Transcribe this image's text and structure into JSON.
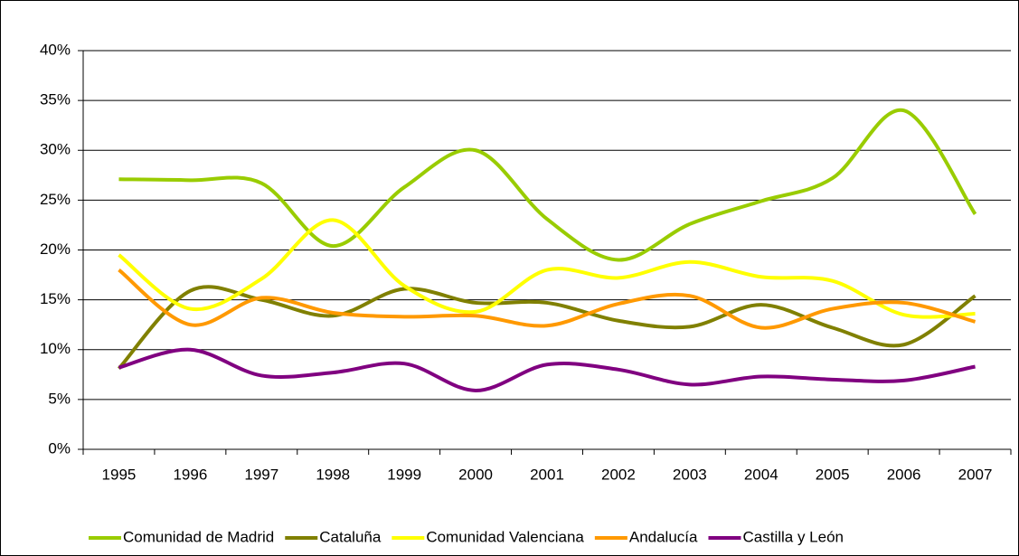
{
  "chart_data": {
    "type": "line",
    "categories": [
      "1995",
      "1996",
      "1997",
      "1998",
      "1999",
      "2000",
      "2001",
      "2002",
      "2003",
      "2004",
      "2005",
      "2006",
      "2007"
    ],
    "series": [
      {
        "name": "Comunidad de Madrid",
        "color": "#99cc00",
        "values": [
          27.1,
          27.0,
          26.7,
          20.4,
          26.3,
          30.0,
          23.1,
          19.0,
          22.6,
          24.9,
          27.2,
          34.0,
          23.6
        ]
      },
      {
        "name": "Cataluña",
        "color": "#808000",
        "values": [
          8.1,
          15.9,
          15.0,
          13.4,
          16.1,
          14.7,
          14.7,
          12.9,
          12.3,
          14.5,
          12.2,
          10.5,
          15.4
        ]
      },
      {
        "name": "Comunidad Valenciana",
        "color": "#ffff00",
        "values": [
          19.5,
          14.1,
          17.1,
          23.0,
          16.4,
          13.8,
          18.0,
          17.2,
          18.8,
          17.3,
          16.9,
          13.5,
          13.6
        ]
      },
      {
        "name": "Andalucía",
        "color": "#ff9900",
        "values": [
          18.0,
          12.5,
          15.2,
          13.7,
          13.3,
          13.4,
          12.4,
          14.6,
          15.4,
          12.2,
          14.1,
          14.7,
          12.8
        ]
      },
      {
        "name": "Castilla y León",
        "color": "#800080",
        "values": [
          8.2,
          10.0,
          7.4,
          7.7,
          8.6,
          5.9,
          8.5,
          8.0,
          6.5,
          7.3,
          7.0,
          6.9,
          8.3
        ]
      }
    ],
    "ylim": [
      0,
      40
    ],
    "yticks": [
      {
        "value": 0,
        "label": "0%"
      },
      {
        "value": 5,
        "label": "5%"
      },
      {
        "value": 10,
        "label": "10%"
      },
      {
        "value": 15,
        "label": "15%"
      },
      {
        "value": 20,
        "label": "20%"
      },
      {
        "value": 25,
        "label": "25%"
      },
      {
        "value": 30,
        "label": "30%"
      },
      {
        "value": 35,
        "label": "35%"
      },
      {
        "value": 40,
        "label": "40%"
      }
    ],
    "grid": true,
    "smooth": true,
    "legend": "bottom"
  }
}
